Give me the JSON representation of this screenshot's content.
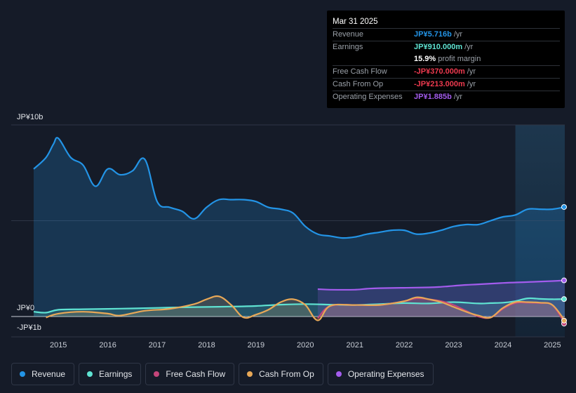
{
  "tooltip": {
    "date": "Mar 31 2025",
    "rows": [
      {
        "label": "Revenue",
        "value": "JP¥5.716b",
        "unit": "/yr",
        "color": "#2394e6"
      },
      {
        "label": "Earnings",
        "value": "JP¥910.000m",
        "unit": "/yr",
        "color": "#5fe3d2"
      },
      {
        "label": "",
        "value": "15.9%",
        "unit": "profit margin",
        "color": "#ffffff"
      },
      {
        "label": "Free Cash Flow",
        "value": "-JP¥370.000m",
        "unit": "/yr",
        "color": "#ee3a4f"
      },
      {
        "label": "Cash From Op",
        "value": "-JP¥213.000m",
        "unit": "/yr",
        "color": "#ee3a4f"
      },
      {
        "label": "Operating Expenses",
        "value": "JP¥1.885b",
        "unit": "/yr",
        "color": "#a35ced"
      }
    ]
  },
  "chart_data": {
    "type": "area",
    "y_tick_labels": [
      "JP¥10b",
      "JP¥0",
      "-JP¥1b"
    ],
    "ylim": [
      -1,
      10
    ],
    "xlim": [
      2014.5,
      2025.25
    ],
    "x_ticks": [
      2015,
      2016,
      2017,
      2018,
      2019,
      2020,
      2021,
      2022,
      2023,
      2024,
      2025
    ],
    "x_tick_labels": [
      "2015",
      "2016",
      "2017",
      "2018",
      "2019",
      "2020",
      "2021",
      "2022",
      "2023",
      "2024",
      "2025"
    ],
    "highlight_from": 2024.25,
    "series": [
      {
        "name": "Revenue",
        "color": "#2394e6",
        "fill": true,
        "x": [
          2014.5,
          2014.75,
          2014.9,
          2015.0,
          2015.25,
          2015.5,
          2015.75,
          2016.0,
          2016.25,
          2016.5,
          2016.75,
          2017.0,
          2017.25,
          2017.5,
          2017.75,
          2018.0,
          2018.25,
          2018.5,
          2018.75,
          2019.0,
          2019.25,
          2019.5,
          2019.75,
          2020.0,
          2020.25,
          2020.5,
          2020.75,
          2021.0,
          2021.25,
          2021.5,
          2021.75,
          2022.0,
          2022.25,
          2022.5,
          2022.75,
          2023.0,
          2023.25,
          2023.5,
          2023.75,
          2024.0,
          2024.25,
          2024.5,
          2024.75,
          2025.0,
          2025.25
        ],
        "values": [
          7.7,
          8.3,
          9.0,
          9.3,
          8.3,
          7.9,
          6.8,
          7.7,
          7.4,
          7.6,
          8.2,
          6.0,
          5.7,
          5.5,
          5.1,
          5.7,
          6.1,
          6.1,
          6.1,
          6.0,
          5.7,
          5.6,
          5.4,
          4.7,
          4.3,
          4.2,
          4.1,
          4.15,
          4.3,
          4.4,
          4.5,
          4.5,
          4.3,
          4.35,
          4.5,
          4.7,
          4.8,
          4.8,
          5.0,
          5.2,
          5.3,
          5.6,
          5.6,
          5.6,
          5.716
        ]
      },
      {
        "name": "Earnings",
        "color": "#5fe3d2",
        "fill": true,
        "x": [
          2014.5,
          2014.75,
          2015.0,
          2015.5,
          2016.0,
          2016.5,
          2017.0,
          2017.5,
          2018.0,
          2018.5,
          2019.0,
          2019.5,
          2020.0,
          2020.5,
          2021.0,
          2021.5,
          2022.0,
          2022.5,
          2023.0,
          2023.5,
          2023.75,
          2024.0,
          2024.25,
          2024.5,
          2024.75,
          2025.0,
          2025.25
        ],
        "values": [
          0.25,
          0.2,
          0.35,
          0.38,
          0.4,
          0.42,
          0.45,
          0.48,
          0.5,
          0.52,
          0.55,
          0.62,
          0.65,
          0.62,
          0.6,
          0.65,
          0.7,
          0.68,
          0.75,
          0.68,
          0.7,
          0.72,
          0.8,
          0.95,
          0.92,
          0.9,
          0.91
        ]
      },
      {
        "name": "Free Cash Flow",
        "color": "#c4457a",
        "fill": true,
        "x": [
          2020.25,
          2020.5,
          2021.0,
          2021.5,
          2022.0,
          2022.25,
          2022.5,
          2022.75,
          2023.0,
          2023.25,
          2023.5,
          2023.75,
          2024.0,
          2024.25,
          2024.5,
          2024.75,
          2025.0,
          2025.25
        ],
        "values": [
          -0.1,
          0.55,
          0.6,
          0.6,
          0.8,
          0.95,
          0.9,
          0.8,
          0.6,
          0.3,
          0.0,
          -0.05,
          0.4,
          0.7,
          0.72,
          0.7,
          0.6,
          -0.37
        ]
      },
      {
        "name": "Cash From Op",
        "color": "#e8a857",
        "fill": true,
        "x": [
          2014.75,
          2015.0,
          2015.5,
          2016.0,
          2016.25,
          2016.75,
          2017.25,
          2017.75,
          2018.0,
          2018.25,
          2018.5,
          2018.75,
          2019.0,
          2019.25,
          2019.5,
          2019.75,
          2020.0,
          2020.25,
          2020.5,
          2021.0,
          2021.5,
          2022.0,
          2022.25,
          2022.5,
          2022.75,
          2023.0,
          2023.25,
          2023.5,
          2023.75,
          2024.0,
          2024.25,
          2024.5,
          2024.75,
          2025.0,
          2025.25
        ],
        "values": [
          -0.05,
          0.15,
          0.25,
          0.15,
          0.05,
          0.3,
          0.4,
          0.65,
          0.9,
          1.05,
          0.6,
          -0.05,
          0.1,
          0.35,
          0.75,
          0.9,
          0.6,
          -0.2,
          0.55,
          0.6,
          0.6,
          0.8,
          1.0,
          0.9,
          0.75,
          0.5,
          0.25,
          0.05,
          -0.05,
          0.45,
          0.75,
          0.75,
          0.72,
          0.6,
          -0.213
        ]
      },
      {
        "name": "Operating Expenses",
        "color": "#a35ced",
        "fill": true,
        "x": [
          2020.25,
          2020.5,
          2021.0,
          2021.25,
          2021.5,
          2022.0,
          2022.5,
          2022.75,
          2023.0,
          2023.25,
          2023.5,
          2024.0,
          2024.5,
          2025.0,
          2025.25
        ],
        "values": [
          1.43,
          1.4,
          1.4,
          1.45,
          1.48,
          1.5,
          1.52,
          1.55,
          1.6,
          1.65,
          1.68,
          1.75,
          1.8,
          1.85,
          1.885
        ]
      }
    ]
  },
  "legend": [
    {
      "label": "Revenue",
      "color": "#2394e6"
    },
    {
      "label": "Earnings",
      "color": "#5fe3d2"
    },
    {
      "label": "Free Cash Flow",
      "color": "#c4457a"
    },
    {
      "label": "Cash From Op",
      "color": "#e8a857"
    },
    {
      "label": "Operating Expenses",
      "color": "#a35ced"
    }
  ]
}
